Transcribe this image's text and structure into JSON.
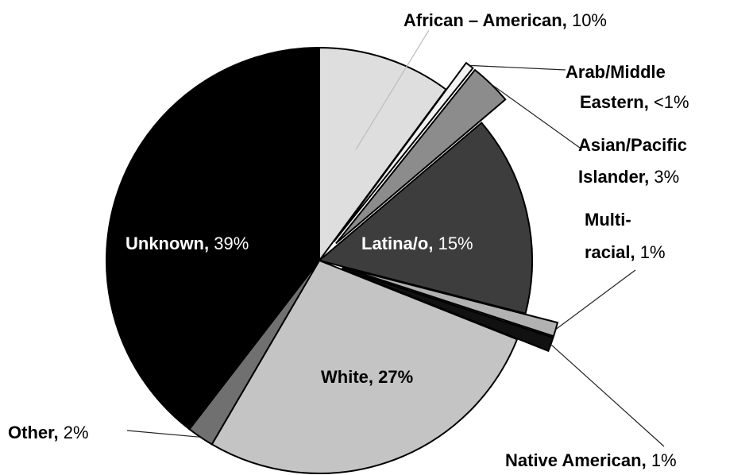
{
  "chart_data": {
    "type": "pie",
    "title": "",
    "slices": [
      {
        "name": "African – American",
        "pct_label": "10%",
        "value": 10,
        "color": "#dedede",
        "exploded": false
      },
      {
        "name": "Arab/Middle Eastern",
        "pct_label": "<1%",
        "value": 0.6,
        "color": "#f2f2f2",
        "exploded": true
      },
      {
        "name": "Asian/Pacific Islander",
        "pct_label": "3%",
        "value": 3,
        "color": "#8c8c8c",
        "exploded": true
      },
      {
        "name": "Latina/o",
        "pct_label": "15%",
        "value": 15,
        "color": "#3d3d3d",
        "exploded": false
      },
      {
        "name": "Multi-racial",
        "pct_label": "1%",
        "value": 1,
        "color": "#b2b2b2",
        "exploded": true
      },
      {
        "name": "Native American",
        "pct_label": "1%",
        "value": 1,
        "color": "#111111",
        "exploded": true
      },
      {
        "name": "White",
        "pct_label": "27%",
        "value": 27,
        "color": "#c4c4c4",
        "exploded": false
      },
      {
        "name": "Other",
        "pct_label": "2%",
        "value": 2,
        "color": "#707070",
        "exploded": false
      },
      {
        "name": "Unknown",
        "pct_label": "39%",
        "value": 39,
        "color": "#000000",
        "exploded": false
      }
    ],
    "legend": "none"
  }
}
